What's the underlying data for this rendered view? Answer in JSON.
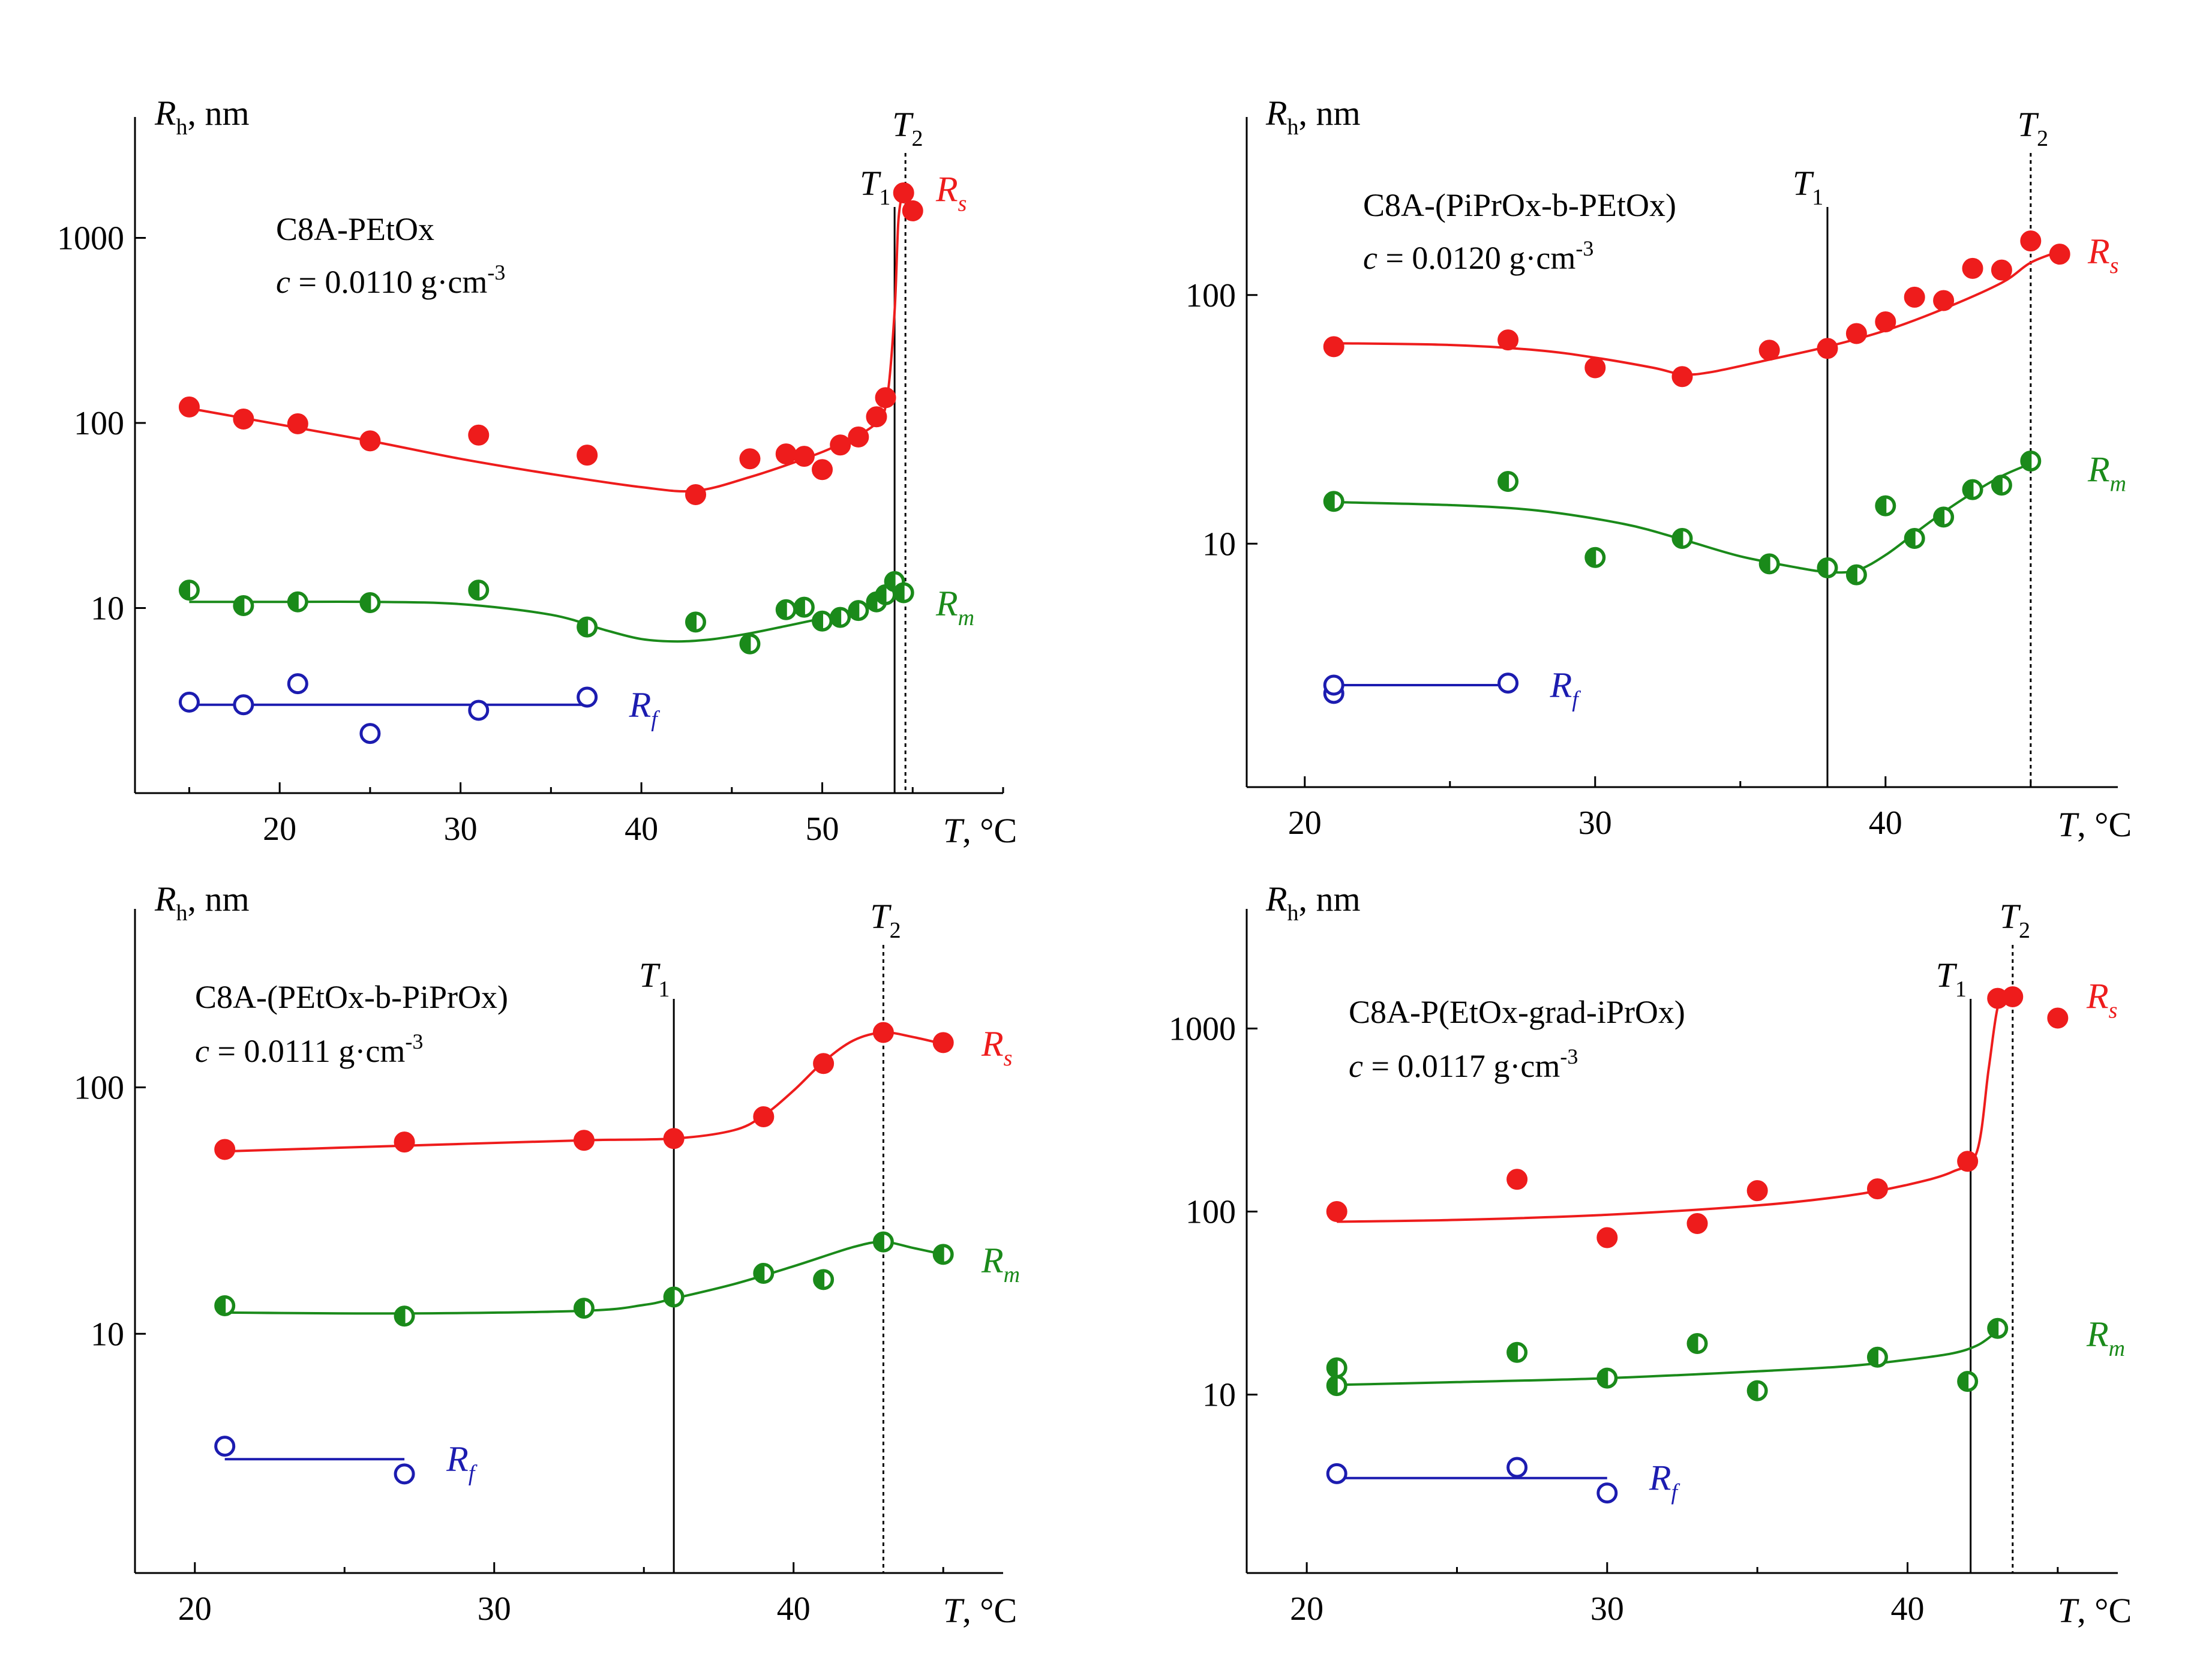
{
  "colors": {
    "Rs": "#ee1c1c",
    "Rm": "#1a8a1a",
    "Rf": "#1c1cb0",
    "axis": "#000000"
  },
  "chart_data": [
    {
      "type": "scatter",
      "title": "C8A-PEtOx",
      "concentration_label": "c",
      "concentration_value": "= 0.0110 g·cm",
      "concentration_exp": "-3",
      "xlabel": "T",
      "xunit": ", °C",
      "ylabel": "R",
      "ylabel_sub": "h",
      "yunit": ", nm",
      "xlim": [
        12,
        60
      ],
      "ylim": [
        1,
        4500
      ],
      "yscale": "log",
      "x_ticks": [
        20,
        30,
        40,
        50
      ],
      "x_tick_labels": [
        "20",
        "30",
        "40",
        "50"
      ],
      "y_ticks": [
        10,
        100,
        1000
      ],
      "y_tick_labels": [
        "10",
        "100",
        "1000"
      ],
      "transitions": [
        {
          "name": "T",
          "sub": "1",
          "x": 54.0,
          "style": "solid"
        },
        {
          "name": "T",
          "sub": "2",
          "x": 54.6,
          "style": "dotted"
        }
      ],
      "series": [
        {
          "name": "R",
          "sub": "s",
          "marker": "filled",
          "x": [
            15,
            18,
            21,
            25,
            31,
            37,
            43,
            46,
            48,
            49,
            50,
            51,
            52,
            53,
            53.5,
            54.5,
            55
          ],
          "y": [
            122,
            105,
            99,
            80,
            86,
            67,
            41,
            64,
            68,
            66,
            56,
            76,
            84,
            108,
            137,
            1750,
            1400
          ],
          "fit_x": [
            15,
            20,
            25,
            30,
            35,
            40,
            43,
            46,
            49,
            51,
            53,
            53.6,
            54.0,
            54.2,
            54.4
          ],
          "fit_y": [
            120,
            98,
            80,
            64,
            53,
            45,
            43,
            51,
            64,
            77,
            100,
            140,
            400,
            1200,
            1700
          ]
        },
        {
          "name": "R",
          "sub": "m",
          "marker": "half",
          "x": [
            15,
            18,
            21,
            25,
            31,
            37,
            43,
            46,
            48,
            49,
            50,
            51,
            52,
            53,
            53.5,
            54,
            54.5
          ],
          "y": [
            12.5,
            10.3,
            10.8,
            10.7,
            12.5,
            7.9,
            8.4,
            6.4,
            9.8,
            10.1,
            8.5,
            8.9,
            9.7,
            10.8,
            11.8,
            13.9,
            12.1
          ],
          "fit_x": [
            15,
            20,
            25,
            30,
            35,
            38,
            40,
            42,
            44,
            46,
            48,
            50,
            52,
            53.5,
            54.5
          ],
          "fit_y": [
            10.8,
            10.8,
            10.8,
            10.5,
            9.2,
            7.6,
            6.8,
            6.6,
            6.8,
            7.3,
            8.0,
            8.8,
            9.8,
            11.2,
            12.3
          ]
        },
        {
          "name": "R",
          "sub": "f",
          "marker": "open",
          "x": [
            15,
            18,
            21,
            25,
            31,
            37
          ],
          "y": [
            3.1,
            3.0,
            3.9,
            2.1,
            2.8,
            3.3
          ],
          "fit_x": [
            15,
            37
          ],
          "fit_y": [
            3.0,
            3.0
          ]
        }
      ]
    },
    {
      "type": "scatter",
      "title": "C8A-(PiPrOx-b-PEtOx)",
      "concentration_label": "c",
      "concentration_value": "= 0.0120 g·cm",
      "concentration_exp": "-3",
      "xlabel": "T",
      "xunit": ", °C",
      "ylabel": "R",
      "ylabel_sub": "h",
      "yunit": ", nm",
      "xlim": [
        18,
        48
      ],
      "ylim": [
        1.05,
        520
      ],
      "yscale": "log",
      "x_ticks": [
        20,
        30,
        40
      ],
      "x_tick_labels": [
        "20",
        "30",
        "40"
      ],
      "y_ticks": [
        10,
        100
      ],
      "y_tick_labels": [
        "10",
        "100"
      ],
      "transitions": [
        {
          "name": "T",
          "sub": "1",
          "x": 38,
          "style": "solid"
        },
        {
          "name": "T",
          "sub": "2",
          "x": 45,
          "style": "dotted"
        }
      ],
      "series": [
        {
          "name": "R",
          "sub": "s",
          "marker": "filled",
          "x": [
            21,
            27,
            30,
            33,
            36,
            38,
            39,
            40,
            41,
            42,
            43,
            44,
            45,
            46
          ],
          "y": [
            62,
            66,
            51,
            47,
            60,
            61,
            70,
            78,
            98,
            95,
            128,
            126,
            165,
            146
          ],
          "fit_x": [
            21,
            25,
            28,
            30,
            32,
            33,
            34,
            36,
            38,
            40,
            42,
            44,
            45,
            46
          ],
          "fit_y": [
            64,
            63,
            60,
            56,
            51,
            48,
            49,
            55,
            62,
            72,
            88,
            112,
            135,
            150
          ]
        },
        {
          "name": "R",
          "sub": "m",
          "marker": "half",
          "x": [
            21,
            27,
            30,
            33,
            36,
            38,
            39,
            40,
            41,
            42,
            43,
            44,
            45
          ],
          "y": [
            14.8,
            17.8,
            8.8,
            10.5,
            8.3,
            8.0,
            7.5,
            14.2,
            10.5,
            12.8,
            16.5,
            17.2,
            21.5
          ],
          "fit_x": [
            21,
            25,
            28,
            31,
            33,
            35,
            37,
            38,
            39,
            40,
            41,
            42,
            43,
            44,
            45
          ],
          "fit_y": [
            14.7,
            14.3,
            13.6,
            12.0,
            10.4,
            8.9,
            8.0,
            7.7,
            7.8,
            9.0,
            11.0,
            13.4,
            16.0,
            18.7,
            21.0
          ]
        },
        {
          "name": "R",
          "sub": "f",
          "marker": "open",
          "x": [
            21,
            21,
            27
          ],
          "y": [
            2.5,
            2.7,
            2.75
          ],
          "fit_x": [
            21,
            27
          ],
          "fit_y": [
            2.7,
            2.7
          ]
        }
      ]
    },
    {
      "type": "scatter",
      "title": "C8A-(PEtOx-b-PiPrOx)",
      "concentration_label": "c",
      "concentration_value": "= 0.0111 g·cm",
      "concentration_exp": "-3",
      "xlabel": "T",
      "xunit": ", °C",
      "ylabel": "R",
      "ylabel_sub": "h",
      "yunit": ", nm",
      "xlim": [
        18,
        47
      ],
      "ylim": [
        1.07,
        530
      ],
      "yscale": "log",
      "x_ticks": [
        20,
        30,
        40
      ],
      "x_tick_labels": [
        "20",
        "30",
        "40"
      ],
      "y_ticks": [
        10,
        100
      ],
      "y_tick_labels": [
        "10",
        "100"
      ],
      "transitions": [
        {
          "name": "T",
          "sub": "1",
          "x": 36,
          "style": "solid"
        },
        {
          "name": "T",
          "sub": "2",
          "x": 43,
          "style": "dotted"
        }
      ],
      "series": [
        {
          "name": "R",
          "sub": "s",
          "marker": "filled",
          "x": [
            21,
            27,
            33,
            36,
            39,
            41,
            43,
            45
          ],
          "y": [
            56,
            60,
            61,
            62,
            76,
            125,
            167,
            152
          ],
          "fit_x": [
            21,
            27,
            33,
            36,
            38,
            39,
            40,
            41,
            42,
            43,
            44,
            45
          ],
          "fit_y": [
            55,
            58,
            61,
            62,
            67,
            77,
            97,
            127,
            155,
            167,
            160,
            150
          ],
          "label": "R",
          "label_sub": "s"
        },
        {
          "name": "R",
          "sub": "m",
          "marker": "half",
          "x": [
            21,
            27,
            33,
            36,
            39,
            41,
            43,
            45
          ],
          "y": [
            13.0,
            11.8,
            12.7,
            14.1,
            17.6,
            16.6,
            23.6,
            21.0
          ],
          "fit_x": [
            21,
            27,
            33,
            35,
            36,
            38,
            40,
            42,
            43,
            44,
            45
          ],
          "fit_y": [
            12.2,
            12.1,
            12.4,
            13.1,
            13.9,
            15.9,
            18.8,
            22.5,
            23.6,
            22.3,
            21.0
          ]
        },
        {
          "name": "R",
          "sub": "f",
          "marker": "open",
          "x": [
            21,
            27
          ],
          "y": [
            3.5,
            2.7
          ],
          "fit_x": [
            21,
            27
          ],
          "fit_y": [
            3.1,
            3.1
          ]
        }
      ]
    },
    {
      "type": "scatter",
      "title": "C8A-P(EtOx-grad-iPrOx)",
      "concentration_label": "c",
      "concentration_value": "= 0.0117 g·cm",
      "concentration_exp": "-3",
      "xlabel": "T",
      "xunit": ", °C",
      "ylabel": "R",
      "ylabel_sub": "h",
      "yunit": ", nm",
      "xlim": [
        18,
        47
      ],
      "ylim": [
        1.06,
        4500
      ],
      "yscale": "log",
      "x_ticks": [
        20,
        30,
        40
      ],
      "x_tick_labels": [
        "20",
        "30",
        "40"
      ],
      "y_ticks": [
        10,
        100,
        1000
      ],
      "y_tick_labels": [
        "10",
        "100",
        "1000"
      ],
      "transitions": [
        {
          "name": "T",
          "sub": "1",
          "x": 42.1,
          "style": "solid"
        },
        {
          "name": "T",
          "sub": "2",
          "x": 43.5,
          "style": "dotted"
        }
      ],
      "series": [
        {
          "name": "R",
          "sub": "s",
          "marker": "filled",
          "x": [
            21,
            27,
            30,
            33,
            35,
            39,
            42,
            43,
            43.5,
            45
          ],
          "y": [
            100,
            150,
            72,
            86,
            130,
            133,
            188,
            1460,
            1490,
            1140
          ],
          "fit_x": [
            21,
            25,
            30,
            35,
            38,
            40,
            41.5,
            42.3,
            42.7,
            43.0,
            43.3
          ],
          "fit_y": [
            88,
            90,
            96,
            108,
            122,
            140,
            165,
            210,
            600,
            1300,
            1500
          ]
        },
        {
          "name": "R",
          "sub": "m",
          "marker": "half",
          "x": [
            21,
            21,
            27,
            30,
            33,
            35,
            39,
            42,
            43
          ],
          "y": [
            11.2,
            14.0,
            17.0,
            12.3,
            19.0,
            10.5,
            16.0,
            11.8,
            23.0
          ],
          "fit_x": [
            21,
            25,
            30,
            35,
            38,
            40,
            41.5,
            42.3,
            42.8,
            43
          ],
          "fit_y": [
            11.3,
            11.7,
            12.3,
            13.4,
            14.3,
            15.5,
            16.8,
            18.5,
            21.0,
            23.0
          ]
        },
        {
          "name": "R",
          "sub": "f",
          "marker": "open",
          "x": [
            21,
            27,
            30
          ],
          "y": [
            3.7,
            4.0,
            2.9
          ],
          "fit_x": [
            21,
            30
          ],
          "fit_y": [
            3.5,
            3.5
          ]
        }
      ]
    }
  ]
}
